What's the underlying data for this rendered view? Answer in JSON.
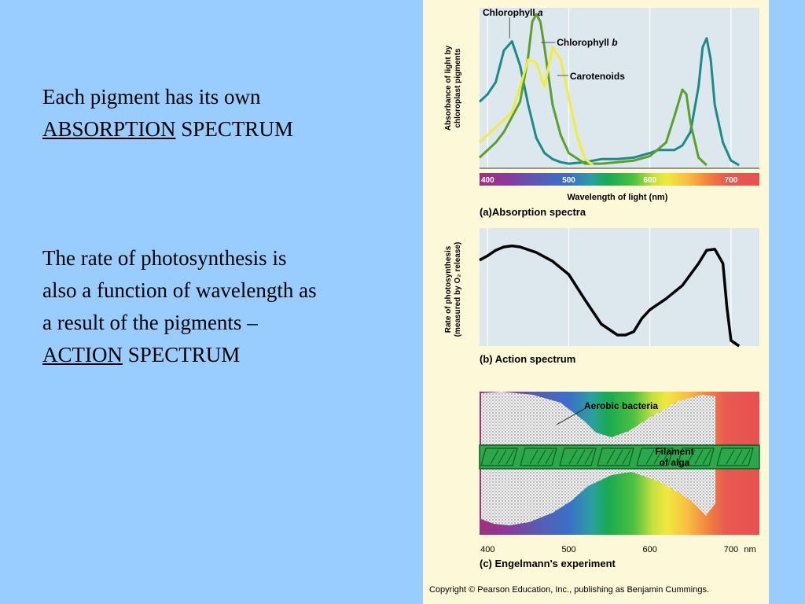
{
  "slide": {
    "para1": {
      "line1": "Each pigment has its own",
      "underlined": "ABSORPTION",
      "rest": " SPECTRUM"
    },
    "para2": {
      "line1": "The rate of photosynthesis is",
      "line2": "also a function of wavelength as",
      "line3": "a result of the pigments –",
      "underlined": "ACTION",
      "rest": " SPECTRUM"
    }
  },
  "copyright": "Copyright © Pearson Education, Inc., publishing as Benjamin Cummings.",
  "chart_data": [
    {
      "type": "line",
      "panel_label": "(a)",
      "title": "Absorption spectra",
      "xlabel": "Wavelength of light (nm)",
      "ylabel_line1": "Absorbance of light by",
      "ylabel_line2": "chloroplast pigments",
      "xlim": [
        390,
        735
      ],
      "ylim": [
        0,
        1
      ],
      "x_ticks": [
        400,
        500,
        600,
        700
      ],
      "series": [
        {
          "name": "Chlorophyll a",
          "color": "#1a8a8a",
          "x": [
            390,
            400,
            410,
            420,
            430,
            440,
            450,
            460,
            470,
            480,
            490,
            500,
            520,
            540,
            560,
            580,
            600,
            610,
            620,
            630,
            640,
            650,
            660,
            665,
            670,
            675,
            680,
            690,
            700,
            710
          ],
          "y": [
            0.42,
            0.47,
            0.55,
            0.76,
            0.82,
            0.66,
            0.4,
            0.18,
            0.08,
            0.04,
            0.02,
            0.01,
            0.02,
            0.04,
            0.04,
            0.05,
            0.08,
            0.1,
            0.1,
            0.1,
            0.13,
            0.22,
            0.52,
            0.78,
            0.84,
            0.7,
            0.4,
            0.15,
            0.03,
            0.0
          ]
        },
        {
          "name": "Chlorophyll b",
          "color": "#5aa02c",
          "x": [
            390,
            400,
            410,
            420,
            430,
            440,
            450,
            455,
            460,
            465,
            470,
            480,
            490,
            500,
            520,
            540,
            560,
            580,
            600,
            620,
            630,
            640,
            645,
            650,
            660,
            670
          ],
          "y": [
            0.05,
            0.1,
            0.15,
            0.22,
            0.32,
            0.42,
            0.72,
            0.95,
            1.0,
            0.95,
            0.78,
            0.4,
            0.2,
            0.08,
            0.01,
            0.01,
            0.02,
            0.03,
            0.06,
            0.15,
            0.32,
            0.5,
            0.47,
            0.28,
            0.05,
            0.0
          ]
        },
        {
          "name": "Carotenoids",
          "color": "#f2ec3a",
          "x": [
            390,
            400,
            410,
            420,
            430,
            440,
            450,
            460,
            470,
            480,
            490,
            500,
            510,
            520,
            530
          ],
          "y": [
            0.15,
            0.2,
            0.25,
            0.3,
            0.35,
            0.52,
            0.7,
            0.68,
            0.52,
            0.78,
            0.7,
            0.45,
            0.2,
            0.04,
            0.0
          ]
        }
      ]
    },
    {
      "type": "line",
      "panel_label": "(b)",
      "title": "Action spectrum",
      "ylabel_line1": "Rate of photosynthesis",
      "ylabel_line2": "(measured by O₂ release)",
      "xlim": [
        390,
        735
      ],
      "ylim": [
        0,
        1
      ],
      "series": [
        {
          "color": "#000000",
          "x": [
            390,
            400,
            410,
            420,
            430,
            440,
            460,
            480,
            500,
            520,
            540,
            560,
            570,
            580,
            590,
            600,
            620,
            640,
            660,
            670,
            680,
            690,
            695,
            700,
            710
          ],
          "y": [
            0.78,
            0.82,
            0.87,
            0.9,
            0.91,
            0.9,
            0.85,
            0.77,
            0.65,
            0.42,
            0.2,
            0.1,
            0.1,
            0.13,
            0.25,
            0.33,
            0.43,
            0.55,
            0.75,
            0.87,
            0.88,
            0.75,
            0.35,
            0.05,
            0.0
          ]
        }
      ]
    },
    {
      "type": "illustration",
      "panel_label": "(c)",
      "title": "Engelmann's experiment",
      "x_ticks": [
        400,
        500,
        600,
        700
      ],
      "x_unit": "nm",
      "label_bacteria": "Aerobic bacteria",
      "label_alga_line1": "Filament",
      "label_alga_line2": "of alga"
    }
  ],
  "colors": {
    "background": "#99ccff",
    "figure_background": "#fdf8d8",
    "plot_background": "#dde7ee"
  }
}
